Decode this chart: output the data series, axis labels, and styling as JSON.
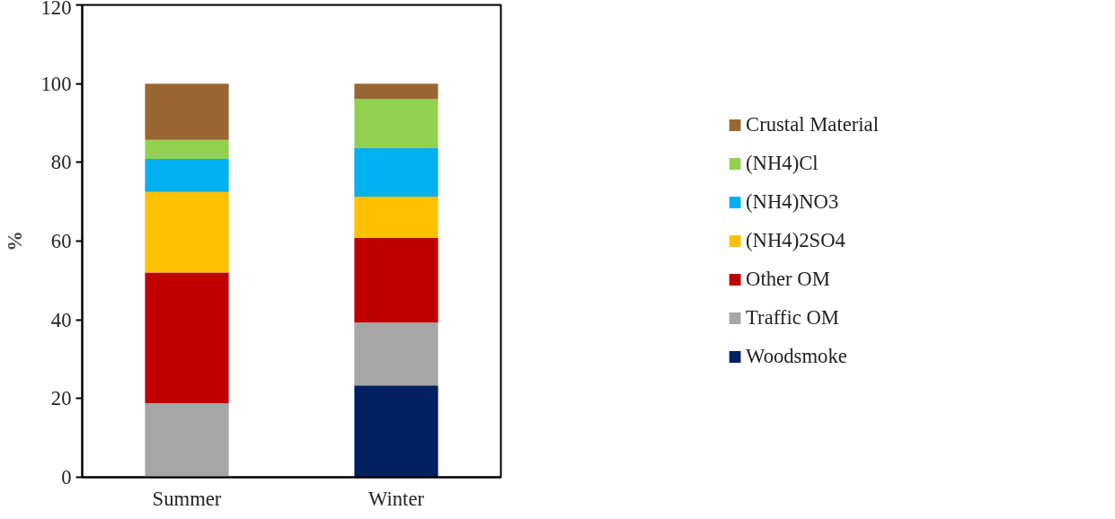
{
  "chart_data": {
    "type": "bar",
    "stacked": true,
    "ylabel": "%",
    "categories": [
      "Summer",
      "Winter"
    ],
    "series": [
      {
        "name": "Woodsmoke",
        "color": "#002060",
        "values": [
          0,
          23.3
        ]
      },
      {
        "name": "Traffic OM",
        "color": "#a6a6a6",
        "values": [
          18.8,
          16.0
        ]
      },
      {
        "name": "Other OM",
        "color": "#c00000",
        "values": [
          33.2,
          21.5
        ]
      },
      {
        "name": "(NH4)2SO4",
        "color": "#ffc000",
        "values": [
          20.5,
          10.5
        ]
      },
      {
        "name": "(NH4)NO3",
        "color": "#00b0f0",
        "values": [
          8.4,
          12.4
        ]
      },
      {
        "name": "(NH4)Cl",
        "color": "#92d050",
        "values": [
          4.8,
          12.4
        ]
      },
      {
        "name": "Crustal Material",
        "color": "#996633",
        "values": [
          14.3,
          3.9
        ]
      }
    ],
    "ylim": [
      0,
      120
    ],
    "yticks": [
      0,
      20,
      40,
      60,
      80,
      100,
      120
    ],
    "grid": false,
    "legend": "right"
  }
}
